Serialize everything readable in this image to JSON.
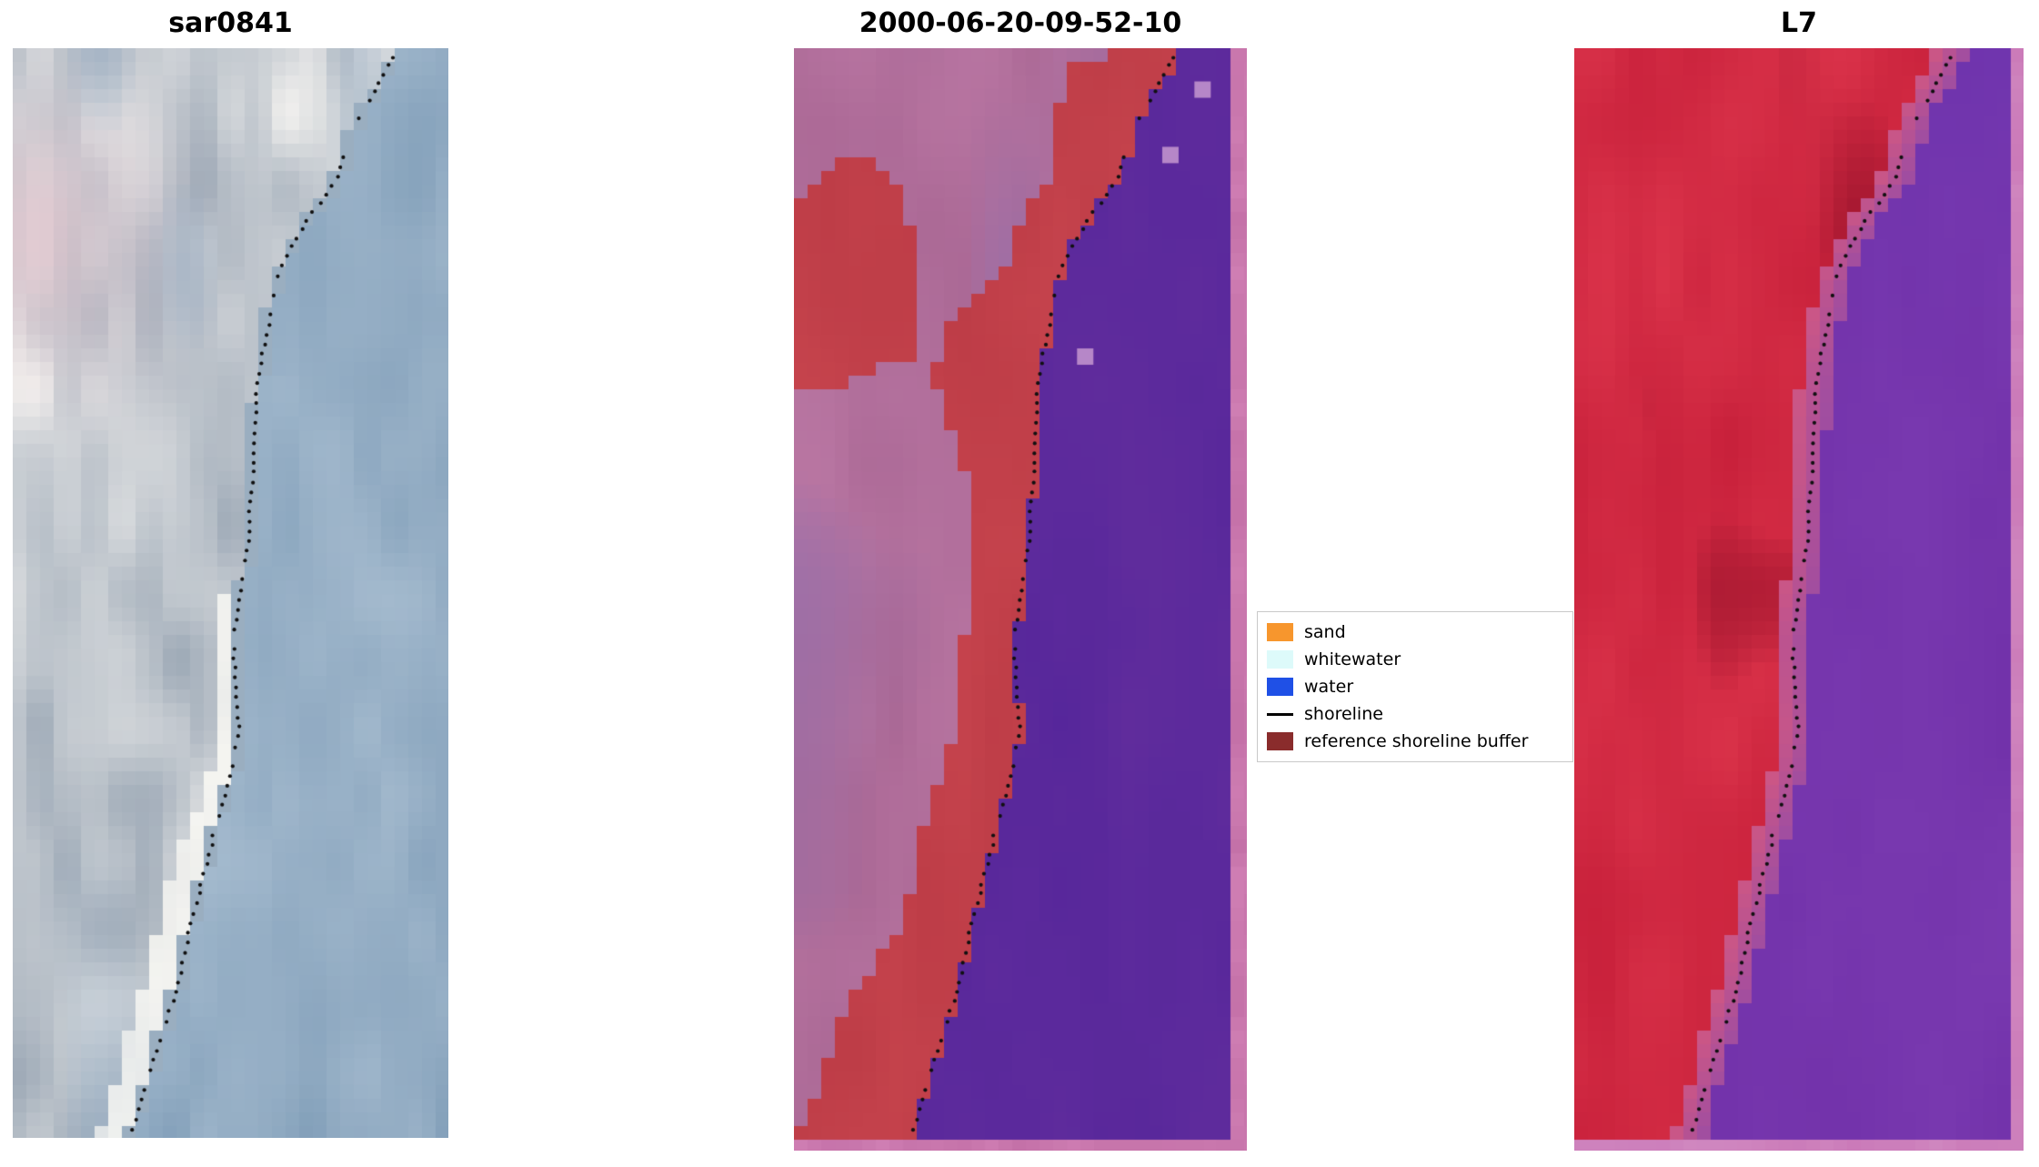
{
  "figure": {
    "background": "#ffffff",
    "panels": [
      {
        "title": "sar0841"
      },
      {
        "title": "2000-06-20-09-52-10"
      },
      {
        "title": "L7"
      }
    ],
    "legend": {
      "items": [
        {
          "label": "sand",
          "color": "#f7962d",
          "type": "patch"
        },
        {
          "label": "whitewater",
          "color": "#ddfafa",
          "type": "patch"
        },
        {
          "label": "water",
          "color": "#1f50e6",
          "type": "patch"
        },
        {
          "label": "shoreline",
          "color": "#000000",
          "type": "line"
        },
        {
          "label": "reference shoreline buffer",
          "color": "#8a2c2c",
          "type": "patch"
        }
      ]
    },
    "colors": {
      "shoreline_dot": "#101010",
      "sar": {
        "land_dark": "#8494a6",
        "land_light": "#f7f5f2",
        "pink": "#eaccd3",
        "blue_gray": "#8ba4bd",
        "beach": "#fcfbf6",
        "water": "#7494b1",
        "water_light": "#b3c6d7"
      },
      "classification": {
        "mauve_dark": "#a2608d",
        "mauve_light": "#bf7ca8",
        "purple_tint": "#8f6fae",
        "red_dark": "#b43540",
        "red_light": "#ce4a53",
        "water_dark": "#50239a",
        "water_light": "#66309e",
        "border_pink": "#d07fb4",
        "border_pink_dark": "#c471a8",
        "pink_square": "#b687c8"
      },
      "l7": {
        "red_dark": "#bc1531",
        "red_light": "#e33b51",
        "maroon": "#8c0e26",
        "water_dark": "#6e2ea7",
        "water_light": "#7d3db3",
        "water_blue": "#5a35b5",
        "transition": "#c2639d",
        "border_pink": "#cb7ab9"
      }
    }
  },
  "chart_data": {
    "type": "heatmap",
    "title": "Shoreline detection comparison: SAR image vs classified image vs Landsat 7",
    "legend_entries": [
      "sand",
      "whitewater",
      "water",
      "shoreline",
      "reference shoreline buffer"
    ],
    "shoreline_points_vu": [
      [
        0.0,
        0.885
      ],
      [
        0.03,
        0.845
      ],
      [
        0.06,
        0.8
      ],
      [
        0.09,
        0.77
      ],
      [
        0.12,
        0.745
      ],
      [
        0.15,
        0.69
      ],
      [
        0.18,
        0.64
      ],
      [
        0.22,
        0.6
      ],
      [
        0.26,
        0.585
      ],
      [
        0.3,
        0.565
      ],
      [
        0.34,
        0.556
      ],
      [
        0.38,
        0.553
      ],
      [
        0.42,
        0.545
      ],
      [
        0.46,
        0.54
      ],
      [
        0.5,
        0.525
      ],
      [
        0.54,
        0.505
      ],
      [
        0.58,
        0.51
      ],
      [
        0.62,
        0.52
      ],
      [
        0.66,
        0.505
      ],
      [
        0.7,
        0.475
      ],
      [
        0.74,
        0.45
      ],
      [
        0.78,
        0.425
      ],
      [
        0.82,
        0.4
      ],
      [
        0.86,
        0.38
      ],
      [
        0.9,
        0.345
      ],
      [
        0.94,
        0.315
      ],
      [
        0.97,
        0.29
      ],
      [
        1.0,
        0.27
      ]
    ],
    "subplots": [
      {
        "title": "sar0841",
        "kind": "sar_rgb_image",
        "land": "bright gray-white cloudy terrain on the left with a pale pink patch near the top-left",
        "water": "blue-gray sea on the right, white beach band along the lower shoreline",
        "overlay": "black dotted detected shoreline"
      },
      {
        "title": "2000-06-20-09-52-10",
        "kind": "classification_overlay",
        "regions": {
          "land": "semi-transparent mauve-pink",
          "reference_buffer": "brick-red band hugging the coast plus a red blob in the upper left",
          "water": "indigo-purple",
          "border": "pink strip along right and bottom edges"
        },
        "buffer_width_by_v": [
          0.2,
          0.13,
          0.13,
          0.22,
          0.15,
          0.09,
          0.11,
          0.14,
          0.13,
          0.2,
          0.28
        ],
        "unclassified_pink_squares_uv": [
          [
            0.94,
            0.038
          ],
          [
            0.866,
            0.098
          ],
          [
            0.67,
            0.283
          ]
        ],
        "overlay": "black dotted detected shoreline"
      },
      {
        "title": "L7",
        "kind": "landsat7_false_color",
        "land": "crimson-red terrain on the left with darker maroon mottling",
        "water": "violet-purple sea on the right, pink strip along right and bottom edges",
        "overlay": "black dotted detected shoreline"
      }
    ]
  }
}
